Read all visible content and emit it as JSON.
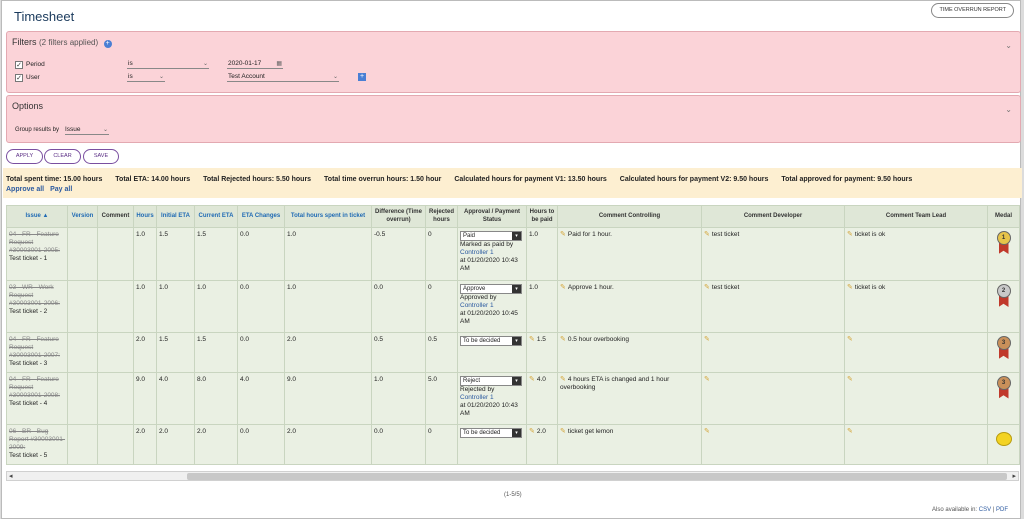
{
  "page": {
    "title": "Timesheet",
    "overrun_report_btn": "TIME OVERRUN REPORT"
  },
  "filters": {
    "title": "Filters",
    "applied": "(2 filters applied)",
    "rows": [
      {
        "label": "Period",
        "checked": true,
        "operator": "is",
        "value": "2020-01-17"
      },
      {
        "label": "User",
        "checked": true,
        "operator": "is",
        "value": "Test Account"
      }
    ]
  },
  "options": {
    "title": "Options",
    "group_label": "Group results by",
    "group_value": "Issue"
  },
  "actions": {
    "apply": "APPLY",
    "clear": "CLEAR",
    "save": "SAVE"
  },
  "totals": {
    "spent": "Total spent time: 15.00 hours",
    "eta": "Total ETA: 14.00 hours",
    "rejected": "Total Rejected hours: 5.50 hours",
    "overrun": "Total time overrun hours: 1.50 hour",
    "payment_v1": "Calculated hours for payment V1: 13.50 hours",
    "payment_v2": "Calculated hours for payment V2: 9.50 hours",
    "approved": "Total approved for payment: 9.50 hours",
    "approve_all": "Approve all",
    "pay_all": "Pay all"
  },
  "table": {
    "headers": {
      "issue": "Issue ▲",
      "version": "Version",
      "comment": "Comment",
      "hours": "Hours",
      "initial_eta": "Initial ETA",
      "current_eta": "Current ETA",
      "eta_changes": "ETA Changes",
      "total_hours": "Total hours spent in ticket",
      "difference": "Difference (Time overrun)",
      "rejected": "Rejected hours",
      "approval": "Approval / Payment Status",
      "hours_paid": "Hours to be paid",
      "comment_controlling": "Comment Controlling",
      "comment_developer": "Comment Developer",
      "comment_teamlead": "Comment Team Lead",
      "medal": "Medal"
    },
    "rows": [
      {
        "issue_ref": "04 - FR - Feature Request #30003001-2005:",
        "issue_name": "Test ticket - 1",
        "hours": "1.0",
        "initial_eta": "1.5",
        "current_eta": "1.5",
        "eta_changes": "0.0",
        "total_hours": "1.0",
        "difference": "-0.5",
        "rejected": "0",
        "status": "Paid",
        "status_note": "Marked as paid by",
        "status_user": "Controller 1",
        "status_time": "at 01/20/2020 10:43 AM",
        "hours_paid": "1.0",
        "c_controlling": "Paid for 1 hour.",
        "c_developer": "test ticket",
        "c_teamlead": "ticket is ok",
        "medal": "gold",
        "medal_text": "1"
      },
      {
        "issue_ref": "03 - WR - Work Request #30003001-2006:",
        "issue_name": "Test ticket - 2",
        "hours": "1.0",
        "initial_eta": "1.0",
        "current_eta": "1.0",
        "eta_changes": "0.0",
        "total_hours": "1.0",
        "difference": "0.0",
        "rejected": "0",
        "status": "Approve",
        "status_note": "Approved by",
        "status_user": "Controller 1",
        "status_time": "at 01/20/2020 10:45 AM",
        "hours_paid": "1.0",
        "c_controlling": "Approve 1 hour.",
        "c_developer": "test ticket",
        "c_teamlead": "ticket is ok",
        "medal": "silver",
        "medal_text": "2"
      },
      {
        "issue_ref": "04 - FR - Feature Request #30003001-2007:",
        "issue_name": "Test ticket - 3",
        "hours": "2.0",
        "initial_eta": "1.5",
        "current_eta": "1.5",
        "eta_changes": "0.0",
        "total_hours": "2.0",
        "difference": "0.5",
        "rejected": "0.5",
        "status": "To be decided",
        "status_note": "",
        "status_user": "",
        "status_time": "",
        "hours_paid": "1.5",
        "c_controlling": "0.5 hour overbooking",
        "c_developer": "",
        "c_teamlead": "",
        "medal": "bronze",
        "medal_text": "3"
      },
      {
        "issue_ref": "04 - FR - Feature Request #30003001-2008:",
        "issue_name": "Test ticket - 4",
        "hours": "9.0",
        "initial_eta": "4.0",
        "current_eta": "8.0",
        "eta_changes": "4.0",
        "total_hours": "9.0",
        "difference": "1.0",
        "rejected": "5.0",
        "status": "Reject",
        "status_note": "Rejected by",
        "status_user": "Controller 1",
        "status_time": "at 01/20/2020 10:43 AM",
        "hours_paid": "4.0",
        "c_controlling": "4 hours ETA is changed and 1 hour overbooking",
        "c_developer": "",
        "c_teamlead": "",
        "medal": "bronze",
        "medal_text": "3"
      },
      {
        "issue_ref": "06 - BR - Bug Report #30003001-2009:",
        "issue_name": "Test ticket - 5",
        "hours": "2.0",
        "initial_eta": "2.0",
        "current_eta": "2.0",
        "eta_changes": "0.0",
        "total_hours": "2.0",
        "difference": "0.0",
        "rejected": "0",
        "status": "To be decided",
        "status_note": "",
        "status_user": "",
        "status_time": "",
        "hours_paid": "2.0",
        "c_controlling": "ticket get lemon",
        "c_developer": "",
        "c_teamlead": "",
        "medal": "lemon",
        "medal_text": ""
      }
    ]
  },
  "pager": "(1-5/5)",
  "footer": {
    "label": "Also available in:",
    "csv": "CSV",
    "sep": "|",
    "pdf": "PDF"
  }
}
